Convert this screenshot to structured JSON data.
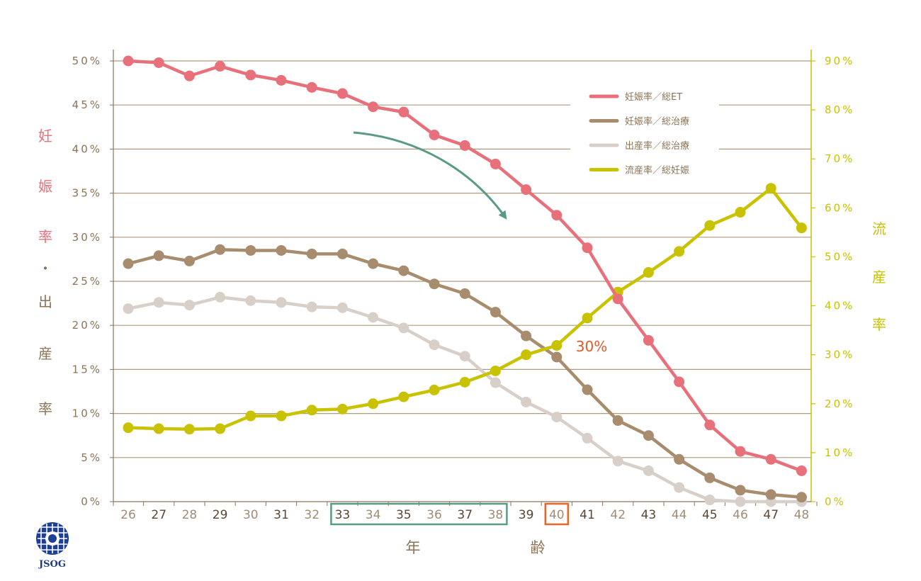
{
  "chart_data": {
    "type": "line",
    "x": [
      26,
      27,
      28,
      29,
      30,
      31,
      32,
      33,
      34,
      35,
      36,
      37,
      38,
      39,
      40,
      41,
      42,
      43,
      44,
      45,
      46,
      47,
      48
    ],
    "x_tick_labels": [
      "26",
      "27",
      "28",
      "29",
      "30",
      "31",
      "32",
      "33",
      "34",
      "35",
      "36",
      "37",
      "38",
      "39",
      "40",
      "41",
      "42",
      "43",
      "44",
      "45",
      "46",
      "47",
      "48"
    ],
    "x_tick_colors": [
      "#a08c74",
      "#5a4633",
      "#a08c74",
      "#5a4633",
      "#a08c74",
      "#5a4633",
      "#a08c74",
      "#5a4633",
      "#a08c74",
      "#5a4633",
      "#a08c74",
      "#5a4633",
      "#a08c74",
      "#5a4633",
      "#a08c74",
      "#5a4633",
      "#a08c74",
      "#5a4633",
      "#a08c74",
      "#5a4633",
      "#a08c74",
      "#5a4633",
      "#a08c74"
    ],
    "xlabel": [
      "年",
      "齢"
    ],
    "ylabel_left": [
      "妊",
      "娠",
      "率",
      "・",
      "出",
      "産",
      "率"
    ],
    "ylabel_left_colors": [
      "#e8707a",
      "#e8707a",
      "#e8707a",
      "#8b7355",
      "#8b7355",
      "#8b7355",
      "#8b7355"
    ],
    "ylabel_right": [
      "流",
      "産",
      "率"
    ],
    "y_left_ticks": [
      {
        "value": 50,
        "label": "50%"
      },
      {
        "value": 45,
        "label": "45%"
      },
      {
        "value": 40,
        "label": "40%"
      },
      {
        "value": 35,
        "label": "35%"
      },
      {
        "value": 30,
        "label": "30%"
      },
      {
        "value": 25,
        "label": "25%"
      },
      {
        "value": 20,
        "label": "20%"
      },
      {
        "value": 15,
        "label": "15%"
      },
      {
        "value": 10,
        "label": "10%"
      },
      {
        "value": 5,
        "label": "5%"
      },
      {
        "value": 0,
        "label": "0%"
      }
    ],
    "y_right_ticks": [
      {
        "value": 90,
        "label": "90%"
      },
      {
        "value": 80,
        "label": "80%"
      },
      {
        "value": 70,
        "label": "70%"
      },
      {
        "value": 60,
        "label": "60%"
      },
      {
        "value": 50,
        "label": "50%"
      },
      {
        "value": 40,
        "label": "40%"
      },
      {
        "value": 30,
        "label": "30%"
      },
      {
        "value": 20,
        "label": "20%"
      },
      {
        "value": 10,
        "label": "10%"
      },
      {
        "value": 0,
        "label": "0%"
      }
    ],
    "ylim_left": [
      0,
      50
    ],
    "ylim_right": [
      0,
      90
    ],
    "grid": true,
    "legend_position": "top-right",
    "series": [
      {
        "name": "妊娠率／総ET",
        "axis": "left",
        "color": "#e8707a",
        "values": [
          50.0,
          49.8,
          48.3,
          49.4,
          48.4,
          47.8,
          47.0,
          46.3,
          44.8,
          44.2,
          41.6,
          40.4,
          38.3,
          35.4,
          32.5,
          28.8,
          23.0,
          18.3,
          13.6,
          8.7,
          5.7,
          4.8,
          3.5
        ]
      },
      {
        "name": "妊娠率／総治療",
        "axis": "left",
        "color": "#a88c6e",
        "values": [
          27.0,
          27.9,
          27.3,
          28.6,
          28.5,
          28.5,
          28.1,
          28.1,
          27.0,
          26.2,
          24.7,
          23.6,
          21.5,
          18.8,
          16.4,
          12.7,
          9.2,
          7.5,
          4.8,
          2.7,
          1.3,
          0.8,
          0.5
        ]
      },
      {
        "name": "出産率／総治療",
        "axis": "left",
        "color": "#d8d0c8",
        "values": [
          21.9,
          22.6,
          22.3,
          23.2,
          22.8,
          22.6,
          22.1,
          22.0,
          20.9,
          19.7,
          17.8,
          16.5,
          13.5,
          11.3,
          9.6,
          7.2,
          4.6,
          3.5,
          1.6,
          0.2,
          0.0,
          0.0,
          0.0
        ]
      },
      {
        "name": "流産率／総妊娠",
        "axis": "right",
        "color": "#c9c200",
        "values": [
          15.1,
          14.9,
          14.8,
          14.9,
          17.5,
          17.5,
          18.7,
          18.9,
          20.0,
          21.4,
          22.8,
          24.4,
          26.7,
          30.0,
          31.9,
          37.5,
          42.8,
          46.8,
          51.1,
          56.4,
          59.1,
          64.0,
          55.9
        ]
      }
    ],
    "annotations": [
      {
        "text": "30%",
        "at_x": 40,
        "color": "#e05a2b"
      }
    ],
    "highlight_boxes": [
      {
        "from": 33,
        "to": 38,
        "color": "#5a9a86"
      },
      {
        "from": 40,
        "to": 40,
        "color": "#e8652b"
      }
    ]
  },
  "logo": {
    "text": "JSOG"
  }
}
